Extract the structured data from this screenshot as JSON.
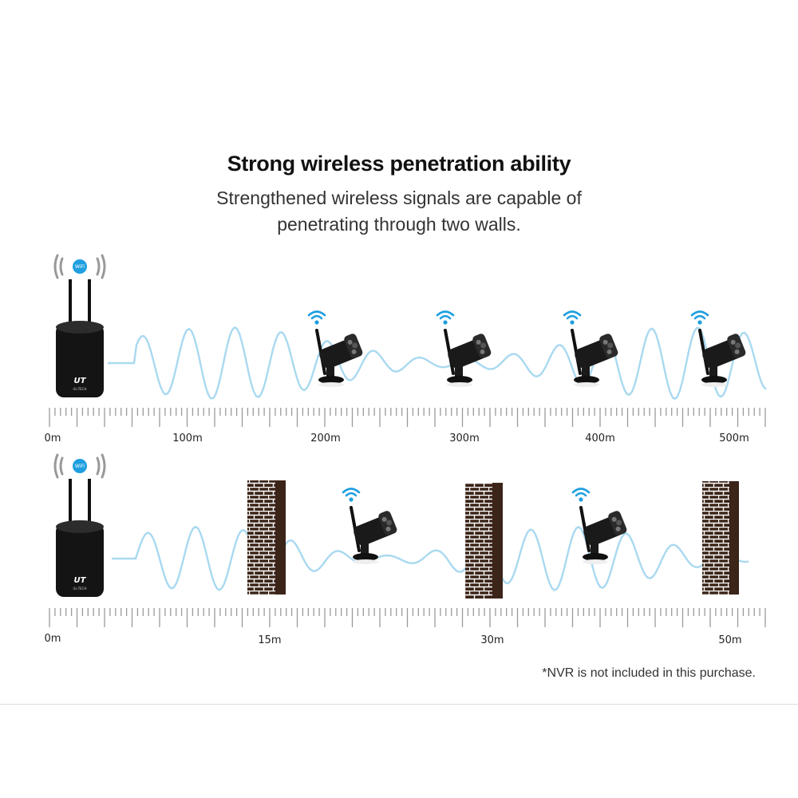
{
  "header": {
    "title": "Strong wireless penetration ability",
    "subtitle_line1": "Strengthened wireless signals are capable of",
    "subtitle_line2": "penetrating through two walls."
  },
  "scenes": [
    {
      "name": "open-range",
      "hub_badge": "WiFi",
      "hub_logo": "UL-TECH",
      "scale_labels": [
        "0m",
        "100m",
        "200m",
        "300m",
        "400m",
        "500m"
      ],
      "cameras": 4,
      "walls": 0
    },
    {
      "name": "through-walls",
      "hub_badge": "WiFi",
      "hub_logo": "UL-TECH",
      "scale_labels": [
        "0m",
        "15m",
        "30m",
        "50m"
      ],
      "cameras": 2,
      "walls": 3
    }
  ],
  "colors": {
    "signal_wave": "#a9d9f0",
    "wifi_icon": "#1e9fe0",
    "wall": "#3b2418",
    "device": "#141414"
  },
  "footnote": "*NVR is not included in this purchase."
}
